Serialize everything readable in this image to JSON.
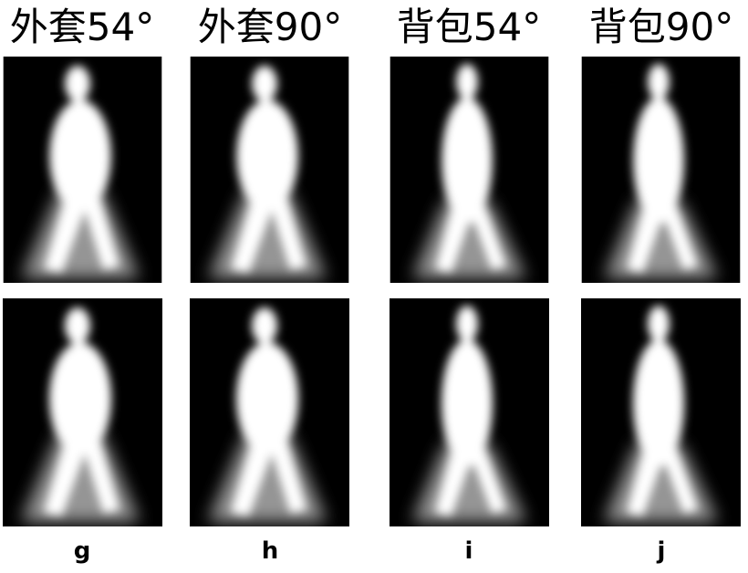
{
  "headers": [
    "外套54°",
    "外套90°",
    "背包54°",
    "背包90°"
  ],
  "labels": [
    "g",
    "h",
    "i",
    "j"
  ]
}
